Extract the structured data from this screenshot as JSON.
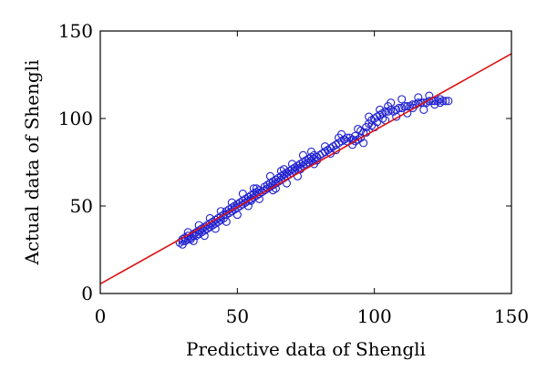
{
  "chart_data": {
    "type": "scatter",
    "title": "",
    "xlabel": "Predictive data of Shengli",
    "ylabel": "Actual data of Shengli",
    "xlim": [
      0,
      150
    ],
    "ylim": [
      0,
      150
    ],
    "xticks": [
      0,
      50,
      100,
      150
    ],
    "yticks": [
      0,
      50,
      100,
      150
    ],
    "grid": false,
    "legend": "none",
    "series": [
      {
        "marker": "open-circle",
        "color": "#2020d0",
        "points": [
          [
            29,
            29
          ],
          [
            30,
            31
          ],
          [
            30,
            30
          ],
          [
            31,
            30
          ],
          [
            31,
            32
          ],
          [
            32,
            31
          ],
          [
            32,
            33
          ],
          [
            33,
            31
          ],
          [
            33,
            32
          ],
          [
            34,
            33
          ],
          [
            34,
            34
          ],
          [
            35,
            33
          ],
          [
            35,
            35
          ],
          [
            36,
            34
          ],
          [
            36,
            36
          ],
          [
            37,
            35
          ],
          [
            37,
            37
          ],
          [
            38,
            36
          ],
          [
            38,
            38
          ],
          [
            39,
            37
          ],
          [
            39,
            39
          ],
          [
            40,
            38
          ],
          [
            40,
            40
          ],
          [
            41,
            39
          ],
          [
            41,
            41
          ],
          [
            42,
            40
          ],
          [
            42,
            42
          ],
          [
            43,
            41
          ],
          [
            43,
            43
          ],
          [
            44,
            42
          ],
          [
            44,
            44
          ],
          [
            45,
            43
          ],
          [
            45,
            45
          ],
          [
            46,
            45
          ],
          [
            46,
            47
          ],
          [
            47,
            46
          ],
          [
            47,
            48
          ],
          [
            48,
            47
          ],
          [
            48,
            49
          ],
          [
            49,
            48
          ],
          [
            49,
            50
          ],
          [
            50,
            49
          ],
          [
            50,
            51
          ],
          [
            51,
            50
          ],
          [
            51,
            52
          ],
          [
            52,
            51
          ],
          [
            52,
            53
          ],
          [
            53,
            52
          ],
          [
            53,
            54
          ],
          [
            54,
            53
          ],
          [
            54,
            55
          ],
          [
            55,
            54
          ],
          [
            55,
            56
          ],
          [
            56,
            55
          ],
          [
            56,
            57
          ],
          [
            57,
            56
          ],
          [
            57,
            58
          ],
          [
            58,
            57
          ],
          [
            58,
            59
          ],
          [
            59,
            58
          ],
          [
            60,
            59
          ],
          [
            60,
            61
          ],
          [
            61,
            60
          ],
          [
            61,
            62
          ],
          [
            62,
            61
          ],
          [
            62,
            63
          ],
          [
            63,
            62
          ],
          [
            63,
            64
          ],
          [
            64,
            63
          ],
          [
            64,
            65
          ],
          [
            65,
            64
          ],
          [
            65,
            66
          ],
          [
            66,
            65
          ],
          [
            66,
            67
          ],
          [
            67,
            66
          ],
          [
            67,
            68
          ],
          [
            68,
            67
          ],
          [
            68,
            69
          ],
          [
            69,
            68
          ],
          [
            69,
            70
          ],
          [
            70,
            69
          ],
          [
            70,
            71
          ],
          [
            71,
            70
          ],
          [
            71,
            72
          ],
          [
            72,
            71
          ],
          [
            72,
            73
          ],
          [
            73,
            72
          ],
          [
            73,
            74
          ],
          [
            74,
            73
          ],
          [
            74,
            75
          ],
          [
            75,
            74
          ],
          [
            75,
            76
          ],
          [
            76,
            75
          ],
          [
            76,
            77
          ],
          [
            77,
            76
          ],
          [
            77,
            78
          ],
          [
            78,
            77
          ],
          [
            78,
            79
          ],
          [
            79,
            78
          ],
          [
            80,
            79
          ],
          [
            81,
            80
          ],
          [
            82,
            81
          ],
          [
            83,
            82
          ],
          [
            84,
            83
          ],
          [
            85,
            84
          ],
          [
            86,
            85
          ],
          [
            87,
            86
          ],
          [
            88,
            87
          ],
          [
            89,
            88
          ],
          [
            90,
            89
          ],
          [
            91,
            89
          ],
          [
            92,
            88
          ],
          [
            93,
            87
          ],
          [
            94,
            88
          ],
          [
            95,
            89
          ],
          [
            96,
            92
          ],
          [
            97,
            95
          ],
          [
            98,
            97
          ],
          [
            99,
            99
          ],
          [
            100,
            100
          ],
          [
            101,
            101
          ],
          [
            102,
            102
          ],
          [
            103,
            103
          ],
          [
            104,
            104
          ],
          [
            105,
            104
          ],
          [
            106,
            105
          ],
          [
            107,
            104
          ],
          [
            108,
            105
          ],
          [
            109,
            106
          ],
          [
            110,
            106
          ],
          [
            111,
            107
          ],
          [
            112,
            107
          ],
          [
            113,
            107
          ],
          [
            114,
            108
          ],
          [
            115,
            108
          ],
          [
            116,
            109
          ],
          [
            117,
            109
          ],
          [
            118,
            109
          ],
          [
            119,
            109
          ],
          [
            120,
            110
          ],
          [
            121,
            110
          ],
          [
            122,
            110
          ],
          [
            123,
            110
          ],
          [
            124,
            109
          ],
          [
            125,
            110
          ],
          [
            126,
            110
          ],
          [
            127,
            110
          ],
          [
            30,
            28
          ],
          [
            32,
            35
          ],
          [
            34,
            30
          ],
          [
            36,
            39
          ],
          [
            38,
            33
          ],
          [
            40,
            43
          ],
          [
            42,
            37
          ],
          [
            44,
            47
          ],
          [
            46,
            41
          ],
          [
            48,
            52
          ],
          [
            50,
            45
          ],
          [
            52,
            57
          ],
          [
            54,
            50
          ],
          [
            56,
            60
          ],
          [
            58,
            54
          ],
          [
            62,
            67
          ],
          [
            64,
            60
          ],
          [
            66,
            70
          ],
          [
            68,
            63
          ],
          [
            70,
            74
          ],
          [
            72,
            67
          ],
          [
            74,
            79
          ],
          [
            78,
            74
          ],
          [
            82,
            84
          ],
          [
            86,
            82
          ],
          [
            88,
            91
          ],
          [
            92,
            85
          ],
          [
            94,
            94
          ],
          [
            96,
            86
          ],
          [
            98,
            101
          ],
          [
            100,
            95
          ],
          [
            102,
            105
          ],
          [
            104,
            99
          ],
          [
            106,
            109
          ],
          [
            108,
            101
          ],
          [
            110,
            111
          ],
          [
            112,
            103
          ],
          [
            114,
            106
          ],
          [
            116,
            112
          ],
          [
            118,
            105
          ],
          [
            120,
            113
          ],
          [
            122,
            108
          ],
          [
            124,
            111
          ],
          [
            55,
            53
          ],
          [
            57,
            60
          ],
          [
            63,
            59
          ],
          [
            67,
            71
          ],
          [
            73,
            71
          ],
          [
            77,
            81
          ],
          [
            79,
            76
          ],
          [
            84,
            80
          ],
          [
            87,
            89
          ],
          [
            90,
            87
          ],
          [
            93,
            90
          ],
          [
            95,
            93
          ],
          [
            97,
            92
          ],
          [
            99,
            96
          ],
          [
            101,
            98
          ],
          [
            103,
            100
          ],
          [
            105,
            107
          ]
        ]
      }
    ],
    "fit_line": {
      "color": "#dd1111",
      "x": [
        0,
        150
      ],
      "y": [
        5.5,
        137
      ]
    }
  }
}
